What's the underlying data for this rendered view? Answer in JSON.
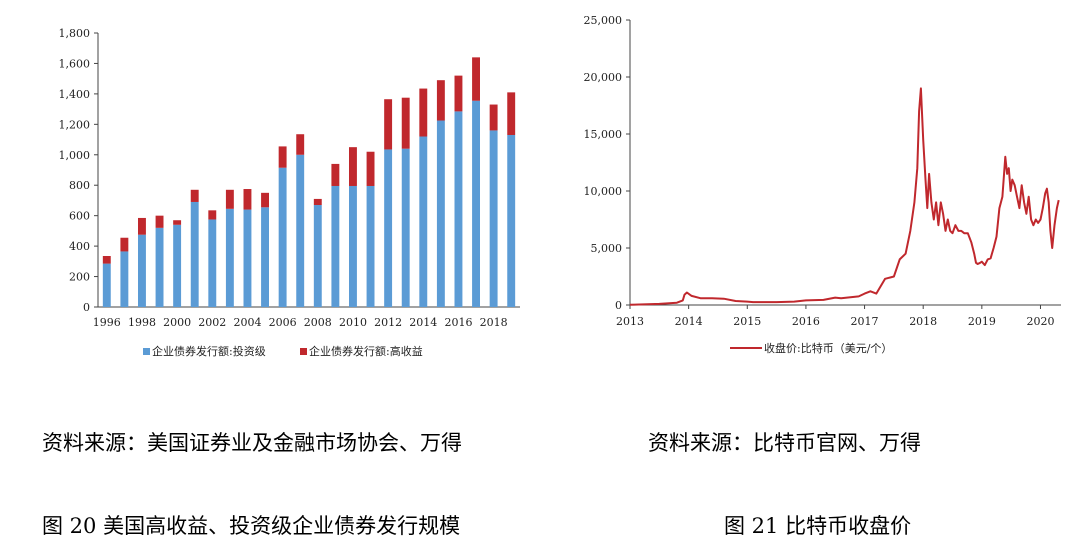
{
  "chart_data": [
    {
      "type": "bar",
      "stacked": true,
      "categories": [
        "1996",
        "1997",
        "1998",
        "1999",
        "2000",
        "2001",
        "2002",
        "2003",
        "2004",
        "2005",
        "2006",
        "2007",
        "2008",
        "2009",
        "2010",
        "2011",
        "2012",
        "2013",
        "2014",
        "2015",
        "2016",
        "2017",
        "2018",
        "2019"
      ],
      "x_tick_labels": [
        "1996",
        "1998",
        "2000",
        "2002",
        "2004",
        "2006",
        "2008",
        "2010",
        "2012",
        "2014",
        "2016",
        "2018"
      ],
      "series": [
        {
          "name": "企业债券发行额:投资级",
          "color": "#5b9bd5",
          "values": [
            285,
            365,
            475,
            520,
            540,
            690,
            575,
            645,
            640,
            655,
            915,
            1000,
            670,
            795,
            795,
            795,
            1035,
            1040,
            1120,
            1225,
            1285,
            1355,
            1160,
            1130
          ]
        },
        {
          "name": "企业债券发行额:高收益",
          "color": "#c0282d",
          "values": [
            50,
            90,
            110,
            80,
            30,
            80,
            60,
            125,
            135,
            95,
            140,
            135,
            40,
            145,
            255,
            225,
            330,
            335,
            315,
            265,
            235,
            285,
            170,
            280
          ]
        }
      ],
      "ylim": [
        0,
        1800
      ],
      "y_ticks": [
        0,
        200,
        400,
        600,
        800,
        1000,
        1200,
        1400,
        1600,
        1800
      ],
      "y_tick_labels": [
        "0",
        "200",
        "400",
        "600",
        "800",
        "1,000",
        "1,200",
        "1,400",
        "1,600",
        "1,800"
      ],
      "legend_position": "bottom",
      "grid": false
    },
    {
      "type": "line",
      "series": [
        {
          "name": "收盘价:比特币（美元/个）",
          "color": "#c0282d",
          "x": [
            2013.0,
            2013.5,
            2013.8,
            2013.9,
            2013.93,
            2013.97,
            2014.05,
            2014.2,
            2014.4,
            2014.6,
            2014.8,
            2015.0,
            2015.1,
            2015.5,
            2015.8,
            2016.0,
            2016.3,
            2016.5,
            2016.6,
            2016.9,
            2017.0,
            2017.1,
            2017.2,
            2017.35,
            2017.5,
            2017.6,
            2017.7,
            2017.78,
            2017.85,
            2017.9,
            2017.93,
            2017.96,
            2018.0,
            2018.04,
            2018.07,
            2018.1,
            2018.14,
            2018.18,
            2018.22,
            2018.26,
            2018.3,
            2018.34,
            2018.38,
            2018.42,
            2018.46,
            2018.5,
            2018.55,
            2018.6,
            2018.65,
            2018.7,
            2018.76,
            2018.82,
            2018.87,
            2018.9,
            2018.93,
            2018.97,
            2019.0,
            2019.05,
            2019.1,
            2019.15,
            2019.2,
            2019.25,
            2019.3,
            2019.35,
            2019.4,
            2019.43,
            2019.46,
            2019.49,
            2019.52,
            2019.56,
            2019.6,
            2019.64,
            2019.68,
            2019.72,
            2019.76,
            2019.8,
            2019.84,
            2019.88,
            2019.92,
            2019.96,
            2020.0,
            2020.04,
            2020.08,
            2020.11,
            2020.14,
            2020.17,
            2020.2,
            2020.24,
            2020.28,
            2020.31
          ],
          "y": [
            20,
            100,
            200,
            400,
            900,
            1100,
            800,
            600,
            600,
            550,
            350,
            300,
            250,
            250,
            300,
            400,
            450,
            650,
            600,
            750,
            1000,
            1200,
            1000,
            2300,
            2500,
            4000,
            4500,
            6500,
            9000,
            12000,
            17000,
            19000,
            14500,
            11000,
            8500,
            11500,
            9000,
            7500,
            9000,
            7000,
            9000,
            8000,
            6500,
            7500,
            6500,
            6300,
            7000,
            6500,
            6500,
            6300,
            6300,
            5500,
            4500,
            3700,
            3600,
            3700,
            3800,
            3500,
            4000,
            4100,
            5000,
            6000,
            8500,
            9500,
            13000,
            11500,
            12000,
            10000,
            11000,
            10500,
            9500,
            8500,
            10500,
            9000,
            8000,
            9500,
            7500,
            7000,
            7500,
            7200,
            7500,
            8500,
            9800,
            10200,
            9000,
            6500,
            5000,
            7000,
            8500,
            9200
          ],
          "comment": "x in years"
        }
      ],
      "xlim": [
        2013,
        2020.35
      ],
      "x_tick_labels": [
        "2013",
        "2014",
        "2015",
        "2016",
        "2017",
        "2018",
        "2019",
        "2020"
      ],
      "ylim": [
        0,
        25000
      ],
      "y_ticks": [
        0,
        5000,
        10000,
        15000,
        20000,
        25000
      ],
      "y_tick_labels": [
        "0",
        "5,000",
        "10,000",
        "15,000",
        "20,000",
        "25,000"
      ],
      "legend_position": "bottom",
      "grid": false
    }
  ],
  "left_source": "资料来源：美国证券业及金融市场协会、万得",
  "right_source": "资料来源：比特币官网、万得",
  "left_caption": "图 20 美国高收益、投资级企业债券发行规模",
  "right_caption": "图 21 比特币收盘价"
}
